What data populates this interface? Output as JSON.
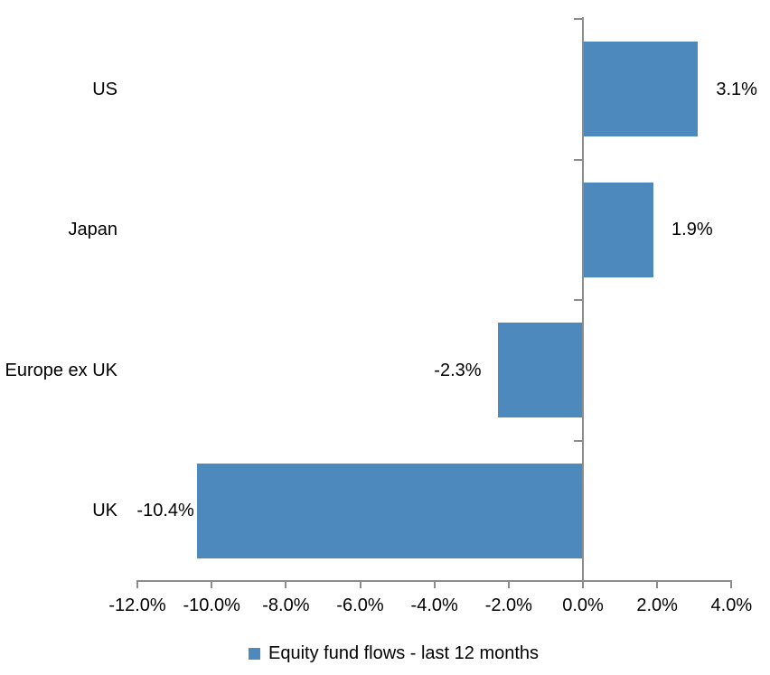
{
  "chart_data": {
    "type": "bar",
    "orientation": "horizontal",
    "title": "",
    "categories": [
      "US",
      "Japan",
      "Europe ex UK",
      "UK"
    ],
    "values": [
      3.1,
      1.9,
      -2.3,
      -10.4
    ],
    "data_labels": [
      "3.1%",
      "1.9%",
      "-2.3%",
      "-10.4%"
    ],
    "x_axis": {
      "tick_labels": [
        "-12.0%",
        "-10.0%",
        "-8.0%",
        "-6.0%",
        "-4.0%",
        "-2.0%",
        "0.0%",
        "2.0%",
        "4.0%"
      ],
      "tick_values": [
        -12,
        -10,
        -8,
        -6,
        -4,
        -2,
        0,
        2,
        4
      ],
      "min": -12,
      "max": 4
    },
    "legend": {
      "label": "Equity fund flows - last 12 months",
      "position": "bottom"
    },
    "grid": "off",
    "colors": {
      "bar": "#4E89BD",
      "axis": "#8C8C8C",
      "text": "#000000",
      "background": "#FFFFFF"
    }
  }
}
